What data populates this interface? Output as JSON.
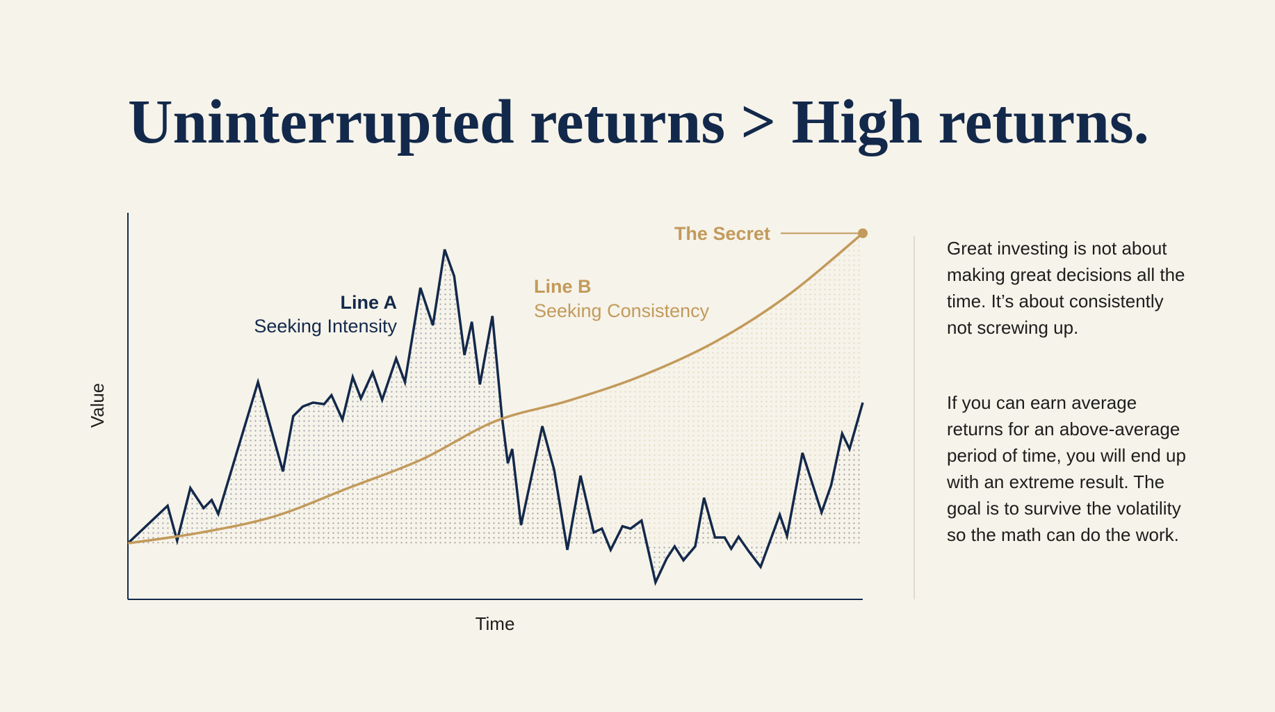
{
  "chart_data": {
    "type": "line",
    "title": "Uninterrupted returns > High returns.",
    "x_label": "Time",
    "y_label": "Value",
    "xlim": [
      0,
      100
    ],
    "ylim": [
      0,
      100
    ],
    "callout": "The Secret",
    "series": [
      {
        "name": "Line A",
        "description": "Seeking Intensity",
        "color": "#13294b",
        "x": [
          0,
          5.4,
          6.7,
          8.5,
          10.3,
          11.4,
          12.3,
          17.7,
          21.1,
          22.5,
          23.8,
          25.2,
          26.7,
          27.7,
          29.2,
          30.6,
          31.7,
          33.3,
          34.6,
          36.5,
          37.7,
          39.8,
          41.5,
          43.1,
          44.4,
          45.8,
          46.8,
          47.9,
          49.6,
          50.9,
          51.7,
          52.3,
          53.5,
          56.4,
          58.0,
          59.8,
          61.6,
          63.4,
          64.5,
          65.7,
          67.3,
          68.4,
          69.9,
          71.8,
          73.3,
          74.4,
          75.6,
          77.2,
          78.4,
          79.9,
          81.2,
          82.1,
          83.1,
          84.5,
          86.1,
          88.7,
          89.7,
          91.8,
          94.4,
          95.7,
          97.2,
          98.2,
          100
        ],
        "values": [
          14.5,
          24.2,
          15.2,
          28.8,
          23.6,
          25.7,
          22.1,
          56.2,
          33.1,
          47.4,
          49.9,
          50.9,
          50.5,
          52.8,
          46.5,
          57.5,
          52.0,
          58.7,
          51.6,
          62.3,
          56.2,
          80.6,
          70.9,
          90.5,
          83.6,
          63.2,
          71.8,
          55.6,
          73.3,
          47.2,
          35.2,
          38.9,
          19.2,
          44.8,
          33.5,
          12.8,
          32.0,
          17.3,
          18.3,
          12.8,
          18.9,
          18.3,
          20.4,
          4.4,
          10.5,
          13.7,
          10.1,
          13.7,
          26.3,
          16.0,
          16.0,
          13.1,
          16.2,
          12.4,
          8.4,
          21.9,
          16.4,
          37.9,
          22.5,
          29.5,
          42.9,
          38.9,
          50.9
        ]
      },
      {
        "name": "Line B",
        "description": "Seeking Consistency",
        "color": "#c29a5b",
        "x": [
          0,
          10,
          20,
          30,
          40,
          50,
          60,
          70,
          80,
          90,
          100
        ],
        "values": [
          14.5,
          17.3,
          21.5,
          28.8,
          36.2,
          46.1,
          51.4,
          57.9,
          66.7,
          78.9,
          94.7
        ]
      }
    ]
  },
  "text_panel": [
    "Great investing is not about making great decisions all the time. It’s about consistently not screwing up.",
    "If you can earn average returns for an above-average period of time, you will end up with an extreme result. The goal is to survive the volatility so the math can do the work."
  ]
}
